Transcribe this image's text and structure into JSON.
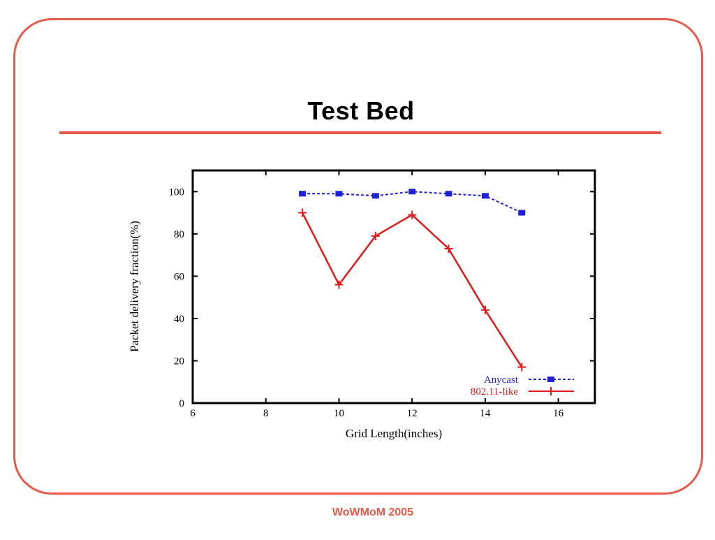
{
  "slide": {
    "title": "Test Bed",
    "footer": "WoWMoM 2005",
    "accent_color": "#e8594a"
  },
  "chart_data": {
    "type": "line",
    "title": "",
    "xlabel": "Grid Length(inches)",
    "ylabel": "Packet delivery fraction(%)",
    "xlim": [
      6,
      17
    ],
    "ylim": [
      0,
      110
    ],
    "xticks": [
      6,
      8,
      10,
      12,
      14,
      16
    ],
    "yticks": [
      0,
      20,
      40,
      60,
      80,
      100
    ],
    "grid": false,
    "legend_position": "bottom-right",
    "series": [
      {
        "name": "Anycast",
        "color": "#1f1fd6",
        "line_style": "dashed",
        "marker": "square",
        "x": [
          9,
          10,
          11,
          12,
          13,
          14,
          15
        ],
        "values": [
          99,
          99,
          98,
          100,
          99,
          98,
          90
        ]
      },
      {
        "name": "802.11-like",
        "color": "#e01a1a",
        "line_style": "solid",
        "marker": "plus",
        "x": [
          9,
          10,
          11,
          12,
          13,
          14,
          15
        ],
        "values": [
          90,
          56,
          79,
          89,
          73,
          44,
          17
        ]
      }
    ]
  }
}
